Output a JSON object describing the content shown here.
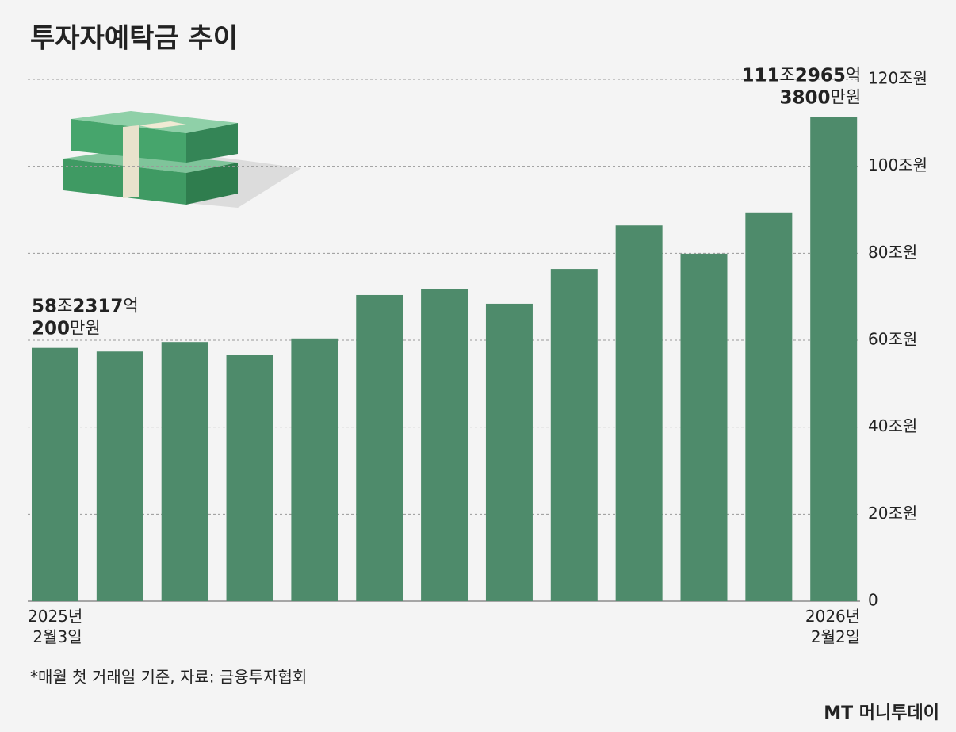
{
  "chart_data": {
    "type": "bar",
    "title": "투자자예탁금 추이",
    "categories": [
      "2025년 2월3일",
      null,
      null,
      null,
      null,
      null,
      null,
      null,
      null,
      null,
      null,
      null,
      "2026년 2월2일"
    ],
    "values": [
      58.231702,
      57.4,
      59.6,
      56.7,
      60.4,
      70.4,
      71.7,
      68.4,
      76.4,
      86.4,
      79.9,
      89.4,
      111.296538
    ],
    "value_labels": [
      [
        "58조2317억",
        "200만원"
      ],
      null,
      null,
      null,
      null,
      null,
      null,
      null,
      null,
      null,
      null,
      null,
      [
        "111조2965억",
        "3800만원"
      ]
    ],
    "color": "#4e8b6b",
    "ylim": [
      0,
      120
    ],
    "yticks": [
      0,
      {
        "value": 20,
        "label": "20조원"
      },
      {
        "value": 40,
        "label": "40조원"
      },
      {
        "value": 60,
        "label": "60조원"
      },
      {
        "value": 80,
        "label": "80조원"
      },
      {
        "value": 100,
        "label": "100조원"
      },
      {
        "value": 120,
        "label": "120조원"
      }
    ],
    "grid": true,
    "note": "*매월 첫 거래일 기준, 자료: 금융투자협회",
    "watermark": "MT 머니투데이"
  }
}
